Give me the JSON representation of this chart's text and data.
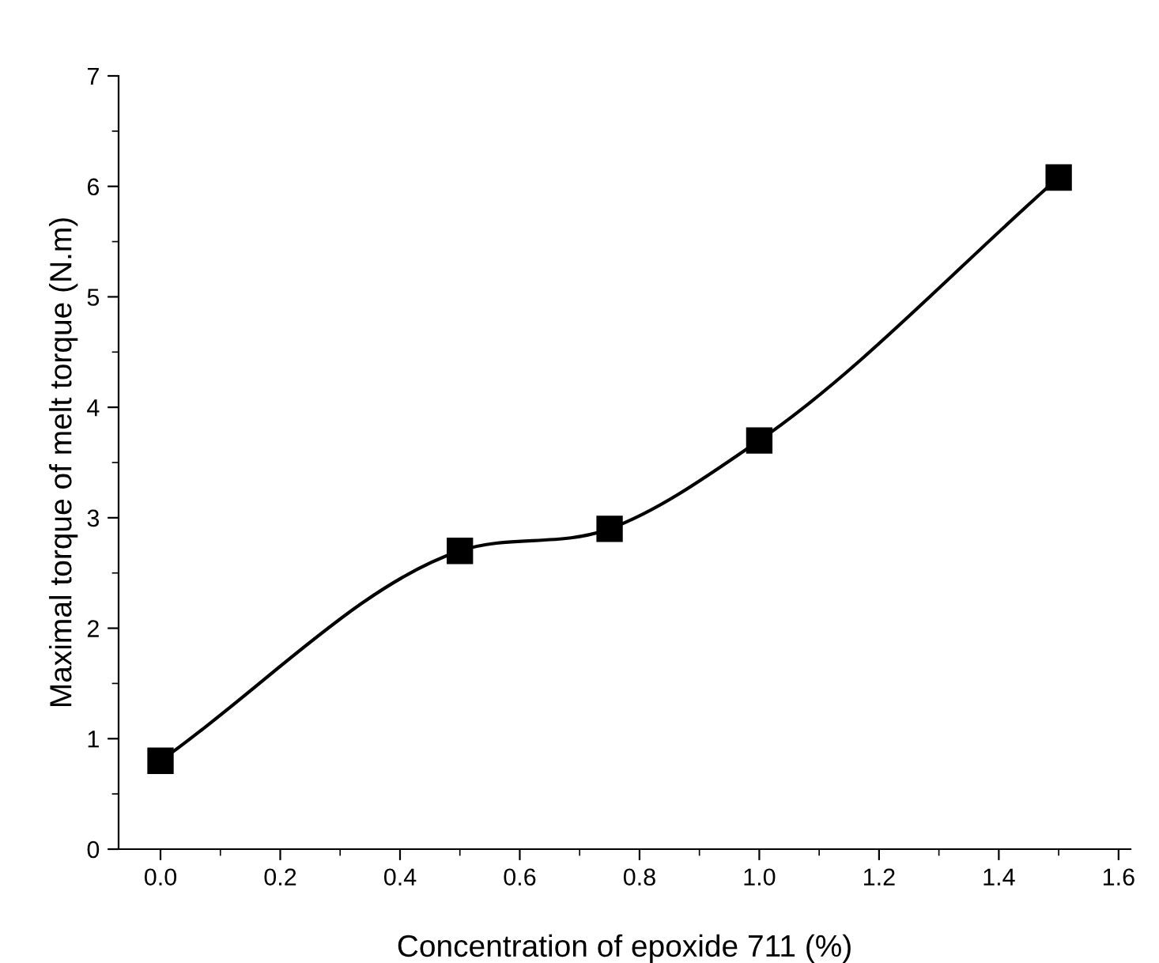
{
  "chart_data": {
    "type": "line",
    "xlabel": "Concentration of epoxide 711 (%)",
    "ylabel": "Maximal torque of melt torque (N.m)",
    "x": [
      0.0,
      0.5,
      0.75,
      1.0,
      1.5
    ],
    "series": [
      {
        "color": "#000000",
        "values": [
          0.8,
          2.7,
          2.9,
          3.7,
          6.08
        ]
      }
    ],
    "xlim": [
      -0.07,
      1.62
    ],
    "xticks": [
      {
        "value": 0.0,
        "label": "0.0"
      },
      {
        "value": 0.2,
        "label": "0.2"
      },
      {
        "value": 0.4,
        "label": "0.4"
      },
      {
        "value": 0.6,
        "label": "0.6"
      },
      {
        "value": 0.8,
        "label": "0.8"
      },
      {
        "value": 1.0,
        "label": "1.0"
      },
      {
        "value": 1.2,
        "label": "1.2"
      },
      {
        "value": 1.4,
        "label": "1.4"
      },
      {
        "value": 1.6,
        "label": "1.6"
      }
    ],
    "ylim": [
      0,
      7
    ],
    "yticks": [
      0,
      1,
      2,
      3,
      4,
      5,
      6,
      7
    ],
    "grid": false,
    "legend": false,
    "marker": "square",
    "line_style": "solid"
  }
}
